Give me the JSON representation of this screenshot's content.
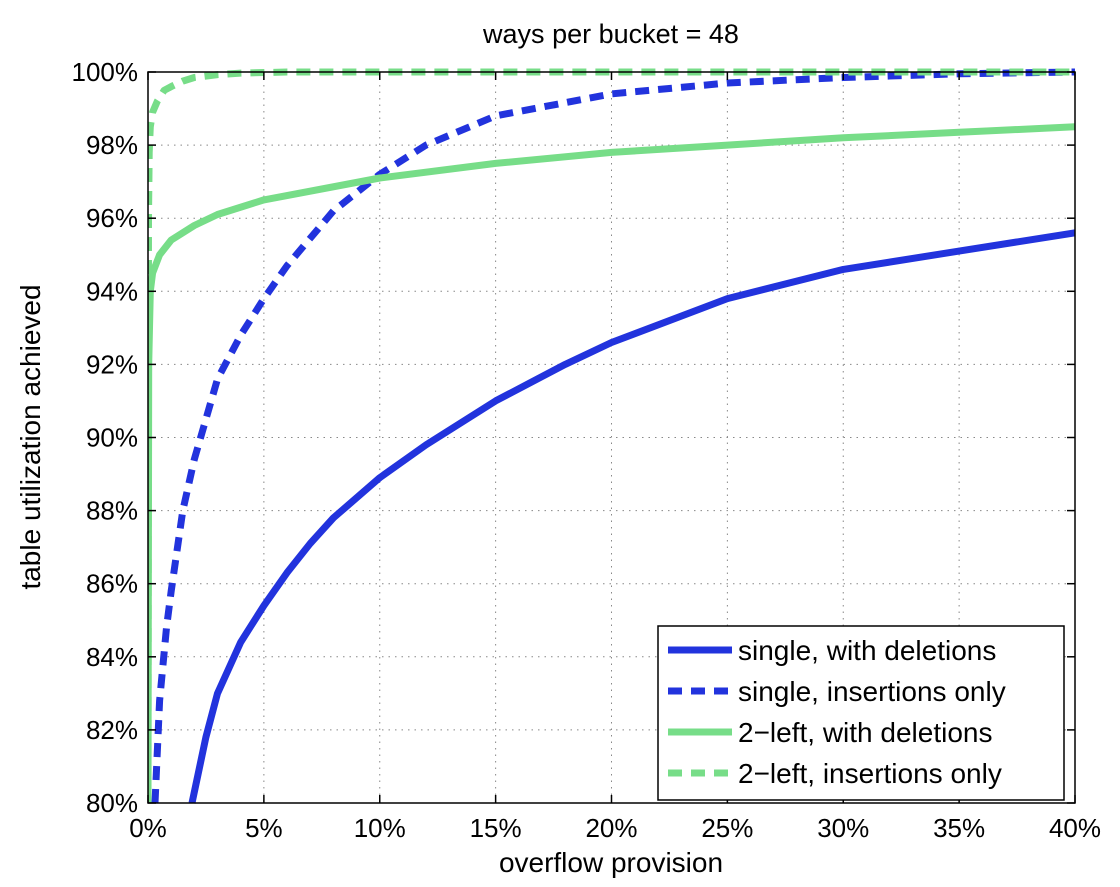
{
  "chart_data": {
    "type": "line",
    "title": "ways per bucket = 48",
    "xlabel": "overflow provision",
    "ylabel": "table utilization achieved",
    "xlim": [
      0,
      40
    ],
    "ylim": [
      80,
      100
    ],
    "x_ticks": [
      0,
      5,
      10,
      15,
      20,
      25,
      30,
      35,
      40
    ],
    "x_tick_labels": [
      "0%",
      "5%",
      "10%",
      "15%",
      "20%",
      "25%",
      "30%",
      "35%",
      "40%"
    ],
    "y_ticks": [
      80,
      82,
      84,
      86,
      88,
      90,
      92,
      94,
      96,
      98,
      100
    ],
    "y_tick_labels": [
      "80%",
      "82%",
      "84%",
      "86%",
      "88%",
      "90%",
      "92%",
      "94%",
      "96%",
      "98%",
      "100%"
    ],
    "grid": true,
    "legend_position": "bottom-right",
    "series": [
      {
        "name": "single, with deletions",
        "color": "#2233dd",
        "dash": "solid",
        "x": [
          1.9,
          2.5,
          3,
          4,
          5,
          6,
          7,
          8,
          10,
          12,
          15,
          18,
          20,
          25,
          30,
          35,
          40
        ],
        "y": [
          80,
          81.8,
          83,
          84.4,
          85.4,
          86.3,
          87.1,
          87.8,
          88.9,
          89.8,
          91.0,
          92.0,
          92.6,
          93.8,
          94.6,
          95.1,
          95.6
        ]
      },
      {
        "name": "single, insertions only",
        "color": "#2233dd",
        "dash": "dashed",
        "x": [
          0.3,
          0.5,
          0.8,
          1,
          1.5,
          2,
          3,
          4,
          5,
          6,
          8,
          10,
          12,
          15,
          20,
          25,
          30,
          35,
          40
        ],
        "y": [
          80,
          82.8,
          84.8,
          85.8,
          88.0,
          89.4,
          91.6,
          92.8,
          93.8,
          94.7,
          96.2,
          97.2,
          98.0,
          98.8,
          99.4,
          99.7,
          99.85,
          99.95,
          100
        ]
      },
      {
        "name": "2−left, with deletions",
        "color": "#77dd88",
        "dash": "solid",
        "x": [
          0,
          0.03,
          0.1,
          0.2,
          0.5,
          1,
          2,
          3,
          5,
          10,
          15,
          20,
          25,
          30,
          35,
          40
        ],
        "y": [
          80,
          92,
          94,
          94.5,
          95.0,
          95.4,
          95.8,
          96.1,
          96.5,
          97.1,
          97.5,
          97.8,
          98.0,
          98.2,
          98.35,
          98.5
        ]
      },
      {
        "name": "2−left, insertions only",
        "color": "#77dd88",
        "dash": "dashed",
        "x": [
          0,
          0.02,
          0.05,
          0.1,
          0.2,
          0.4,
          0.7,
          1,
          1.5,
          2,
          3,
          4,
          6,
          10,
          20,
          40
        ],
        "y": [
          80,
          96,
          97.8,
          98.5,
          98.9,
          99.2,
          99.5,
          99.6,
          99.75,
          99.85,
          99.93,
          99.97,
          100,
          100,
          100,
          100
        ]
      }
    ]
  }
}
